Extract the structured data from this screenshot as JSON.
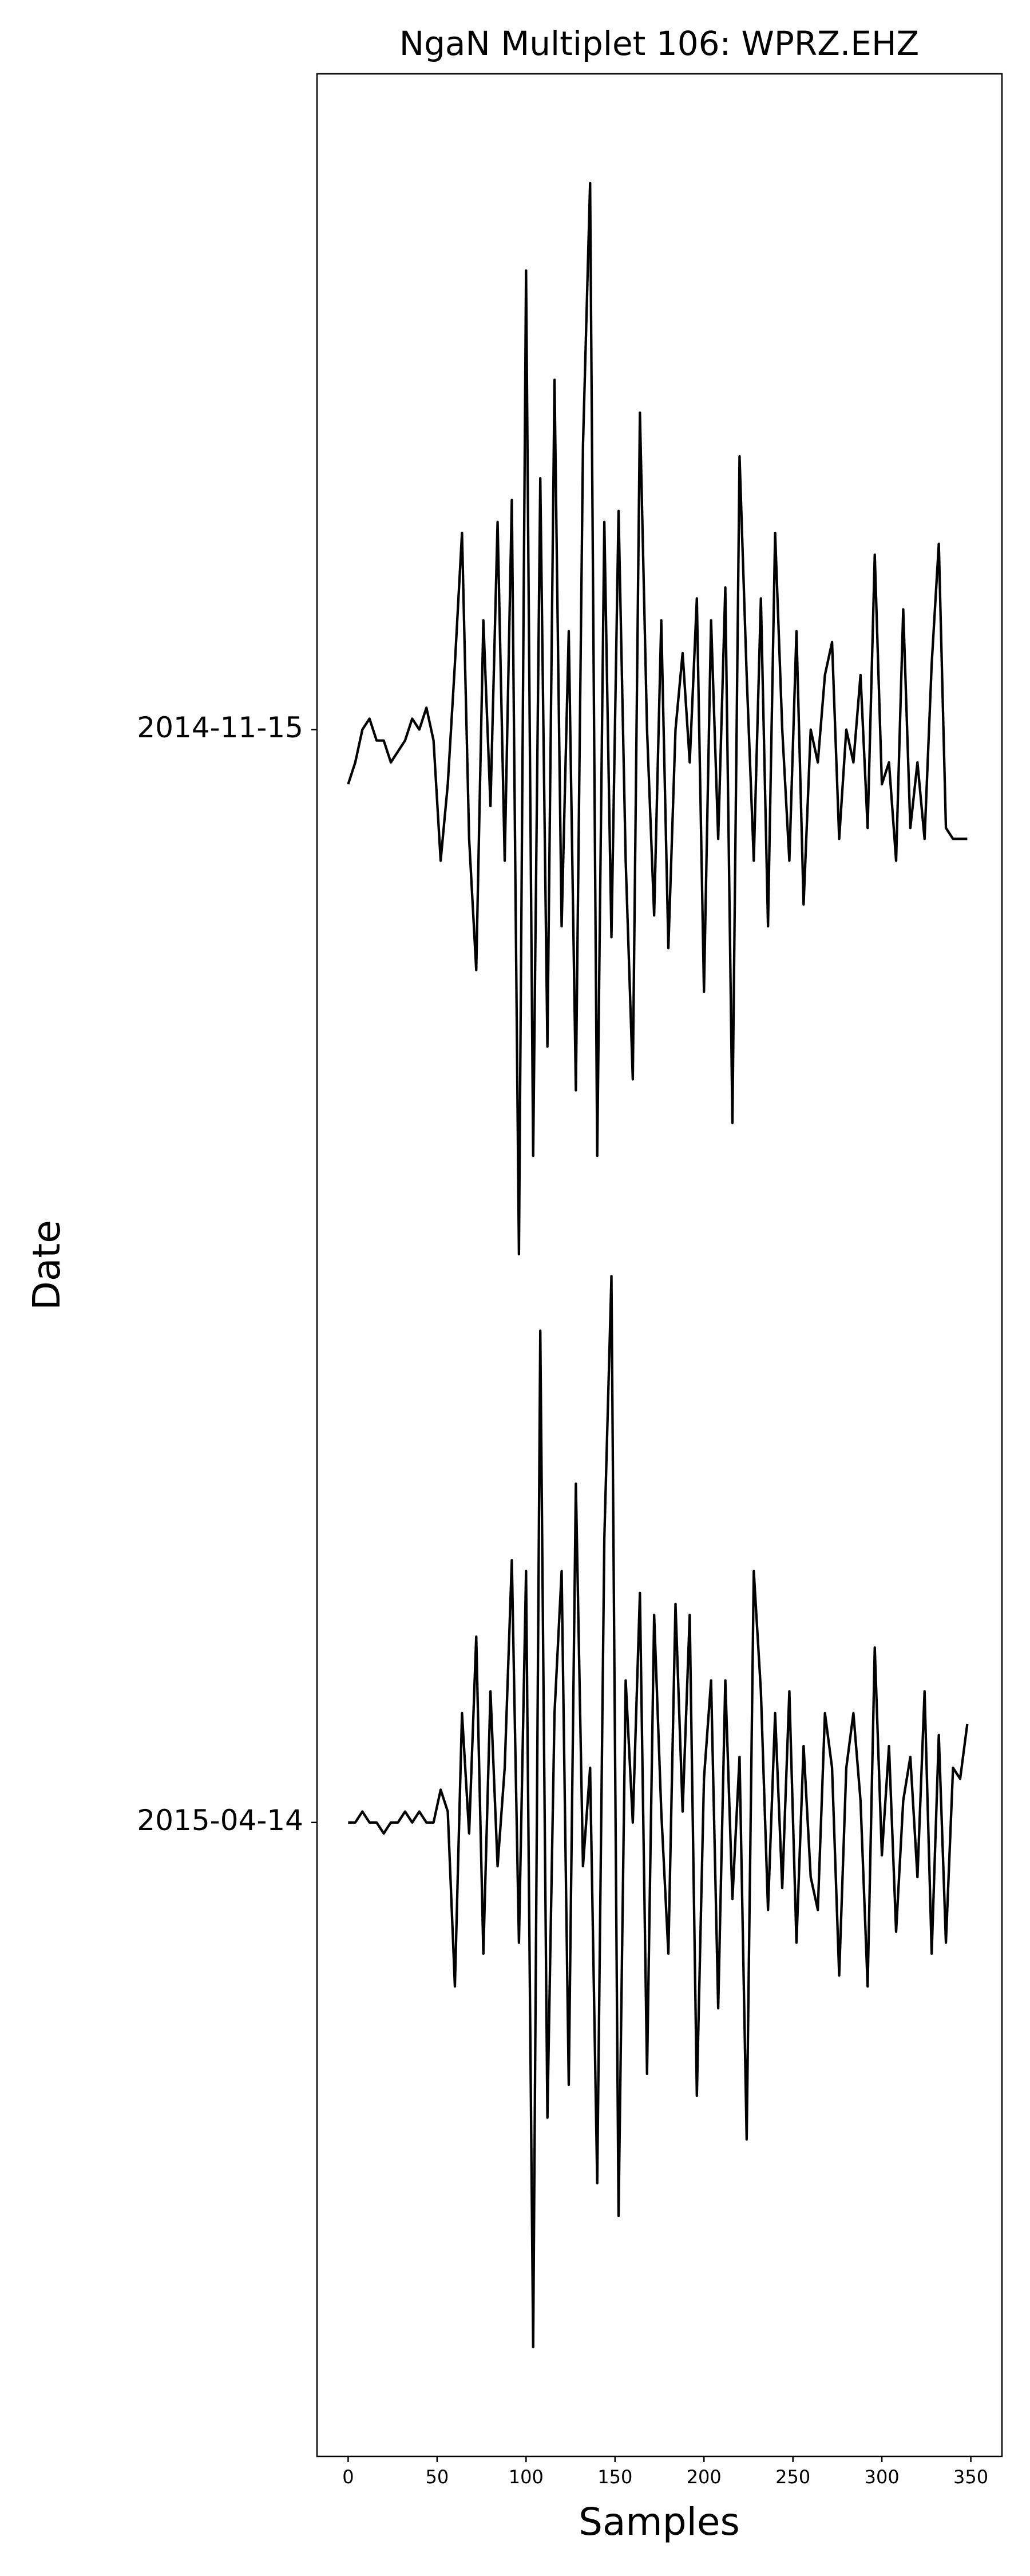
{
  "chart_data": {
    "type": "line",
    "title": "NgaN Multiplet 106: WPRZ.EHZ",
    "xlabel": "Samples",
    "ylabel": "Date",
    "x": [
      0,
      4,
      8,
      12,
      16,
      20,
      24,
      28,
      32,
      36,
      40,
      44,
      48,
      52,
      56,
      60,
      64,
      68,
      72,
      76,
      80,
      84,
      88,
      92,
      96,
      100,
      104,
      108,
      112,
      116,
      120,
      124,
      128,
      132,
      136,
      140,
      144,
      148,
      152,
      156,
      160,
      164,
      168,
      172,
      176,
      180,
      184,
      188,
      192,
      196,
      200,
      204,
      208,
      212,
      216,
      220,
      224,
      228,
      232,
      236,
      240,
      244,
      248,
      252,
      256,
      260,
      264,
      268,
      272,
      276,
      280,
      284,
      288,
      292,
      296,
      300,
      304,
      308,
      312,
      316,
      320,
      324,
      328,
      332,
      336,
      340,
      344,
      348
    ],
    "series": [
      {
        "color": "#000000",
        "values": [
          0.95,
          0.97,
          1,
          1.01,
          0.99,
          0.99,
          0.97,
          0.98,
          0.99,
          1.01,
          1,
          1.02,
          0.99,
          0.88,
          0.95,
          1.06,
          1.18,
          0.9,
          0.78,
          1.1,
          0.93,
          1.19,
          0.88,
          1.21,
          0.52,
          1.42,
          0.61,
          1.23,
          0.71,
          1.32,
          0.82,
          1.09,
          0.67,
          1.26,
          1.5,
          0.61,
          1.19,
          0.81,
          1.2,
          0.88,
          0.68,
          1.29,
          1,
          0.83,
          1.1,
          0.8,
          1,
          1.07,
          0.97,
          1.12,
          0.76,
          1.1,
          0.9,
          1.13,
          0.64,
          1.25,
          1.05,
          0.88,
          1.12,
          0.82,
          1.18,
          1,
          0.88,
          1.09,
          0.84,
          1,
          0.97,
          1.05,
          1.08,
          0.9,
          1,
          0.97,
          1.05,
          0.91,
          1.16,
          0.95,
          0.97,
          0.88,
          1.11,
          0.91,
          0.97,
          0.9,
          1.06,
          1.17,
          0.91,
          0.9,
          0.9,
          0.9
        ]
      },
      {
        "color": "#000000",
        "values": [
          0,
          0,
          0.01,
          0,
          0,
          -0.01,
          0,
          0,
          0.01,
          0,
          0.01,
          0,
          0,
          0.03,
          0.01,
          -0.15,
          0.1,
          -0.01,
          0.17,
          -0.12,
          0.12,
          -0.04,
          0.05,
          0.24,
          -0.11,
          0.23,
          -0.48,
          0.45,
          -0.27,
          0.1,
          0.23,
          -0.24,
          0.31,
          -0.04,
          0.05,
          -0.33,
          0.26,
          0.5,
          -0.36,
          0.13,
          0,
          0.21,
          -0.23,
          0.19,
          0.01,
          -0.12,
          0.2,
          0.01,
          0.19,
          -0.25,
          0.04,
          0.13,
          -0.17,
          0.13,
          -0.07,
          0.06,
          -0.29,
          0.23,
          0.12,
          -0.08,
          0.1,
          -0.06,
          0.12,
          -0.11,
          0.07,
          -0.05,
          -0.08,
          0.1,
          0.05,
          -0.14,
          0.05,
          0.1,
          0.02,
          -0.15,
          0.16,
          -0.03,
          0.07,
          -0.1,
          0.02,
          0.06,
          -0.05,
          0.12,
          -0.12,
          0.08,
          -0.11,
          0.05,
          0.04,
          0.09
        ]
      }
    ],
    "xlim": [
      -17.5,
      367.5
    ],
    "xticks": [
      0,
      50,
      100,
      150,
      200,
      250,
      300,
      350
    ],
    "ylim": [
      -0.58,
      1.6
    ],
    "yticks": [
      {
        "value": 1,
        "label": "2014-11-15"
      },
      {
        "value": 0,
        "label": "2015-04-14"
      }
    ]
  }
}
